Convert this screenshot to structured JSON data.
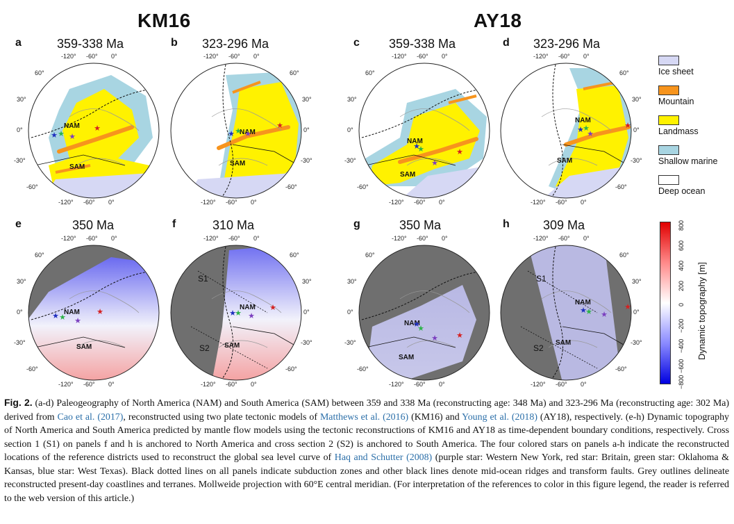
{
  "groups": [
    {
      "title": "KM16"
    },
    {
      "title": "AY18"
    }
  ],
  "panels": [
    {
      "letter": "a",
      "title": "359-338 Ma",
      "type": "paleo"
    },
    {
      "letter": "b",
      "title": "323-296 Ma",
      "type": "paleo"
    },
    {
      "letter": "c",
      "title": "359-338 Ma",
      "type": "paleo"
    },
    {
      "letter": "d",
      "title": "323-296 Ma",
      "type": "paleo"
    },
    {
      "letter": "e",
      "title": "350 Ma",
      "type": "topo"
    },
    {
      "letter": "f",
      "title": "310 Ma",
      "type": "topo"
    },
    {
      "letter": "g",
      "title": "350 Ma",
      "type": "topo"
    },
    {
      "letter": "h",
      "title": "309 Ma",
      "type": "topo"
    }
  ],
  "ticks": {
    "lon": [
      "-120°",
      "-60°",
      "0°"
    ],
    "lat": [
      "60°",
      "30°",
      "0°",
      "-30°",
      "-60°"
    ]
  },
  "region_labels": {
    "nam": "NAM",
    "sam": "SAM",
    "s1": "S1",
    "s2": "S2"
  },
  "legend": [
    {
      "label": "Ice sheet",
      "color": "#d6d8f4"
    },
    {
      "label": "Mountain",
      "color": "#f7941d"
    },
    {
      "label": "Landmass",
      "color": "#fff200"
    },
    {
      "label": "Shallow marine",
      "color": "#a8d5e2"
    },
    {
      "label": "Deep ocean",
      "color": "#ffffff"
    }
  ],
  "colorbar": {
    "title": "Dynamic topography [m]",
    "ticks": [
      "800",
      "600",
      "400",
      "200",
      "0",
      "−200",
      "−400",
      "−600",
      "−800"
    ]
  },
  "stars": [
    {
      "color": "#7b3fbf"
    },
    {
      "color": "#d42020"
    },
    {
      "color": "#2db34a"
    },
    {
      "color": "#1f2fbf"
    }
  ],
  "caption": {
    "fig": "Fig. 2.",
    "t1": " (a-d) Paleogeography of North America (NAM) and South America (SAM) between 359 and 338 Ma (reconstructing age: 348 Ma) and 323-296 Ma (reconstructing age: 302 Ma) derived from ",
    "r1": "Cao et al. (2017)",
    "t2": ", reconstructed using two plate tectonic models of ",
    "r2": "Matthews et al. (2016)",
    "t3": " (KM16) and ",
    "r3": "Young et al. (2018)",
    "t4": " (AY18), respectively. (e-h) Dynamic topography of North America and South America predicted by mantle flow models using the tectonic reconstructions of KM16 and AY18 as time-dependent boundary conditions, respectively. Cross section 1 (S1) on panels f and h is anchored to North America and cross section 2 (S2) is anchored to South America. The four colored stars on panels a-h indicate the reconstructed locations of the reference districts used to reconstruct the global sea level curve of ",
    "r4": "Haq and Schutter (2008)",
    "t5": " (purple star: Western New York, red star: Britain, green star: Oklahoma & Kansas, blue star: West Texas). Black dotted lines on all panels indicate subduction zones and other black lines denote mid-ocean ridges and transform faults. Grey outlines delineate reconstructed present-day coastlines and terranes. Mollweide projection with 60°E central meridian. (For interpretation of the references to color in this figure legend, the reader is referred to the web version of this article.)"
  }
}
